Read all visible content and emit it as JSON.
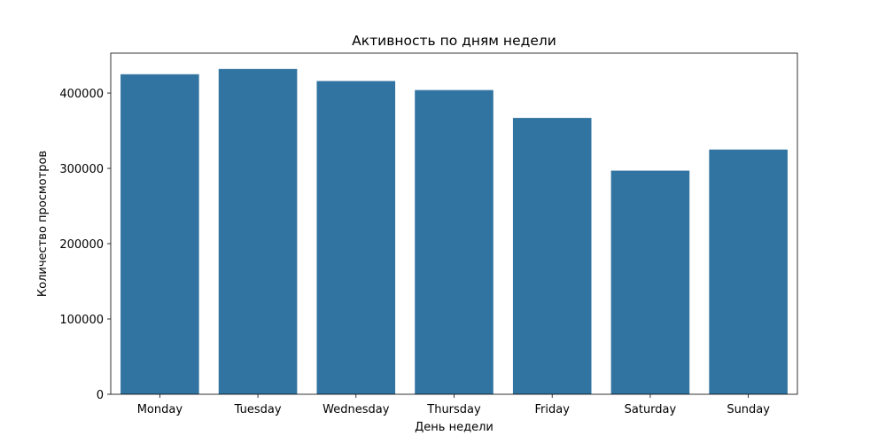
{
  "chart_data": {
    "type": "bar",
    "title": "Активность по дням недели",
    "xlabel": "День недели",
    "ylabel": "Количество просмотров",
    "categories": [
      "Monday",
      "Tuesday",
      "Wednesday",
      "Thursday",
      "Friday",
      "Saturday",
      "Sunday"
    ],
    "values": [
      425000,
      432000,
      416000,
      404000,
      367000,
      297000,
      325000
    ],
    "ylim": [
      0,
      453000
    ],
    "yticks": [
      0,
      100000,
      200000,
      300000,
      400000
    ],
    "ytick_labels": [
      "0",
      "100000",
      "200000",
      "300000",
      "400000"
    ],
    "bar_color": "#3274a1",
    "grid": false,
    "legend": false
  }
}
